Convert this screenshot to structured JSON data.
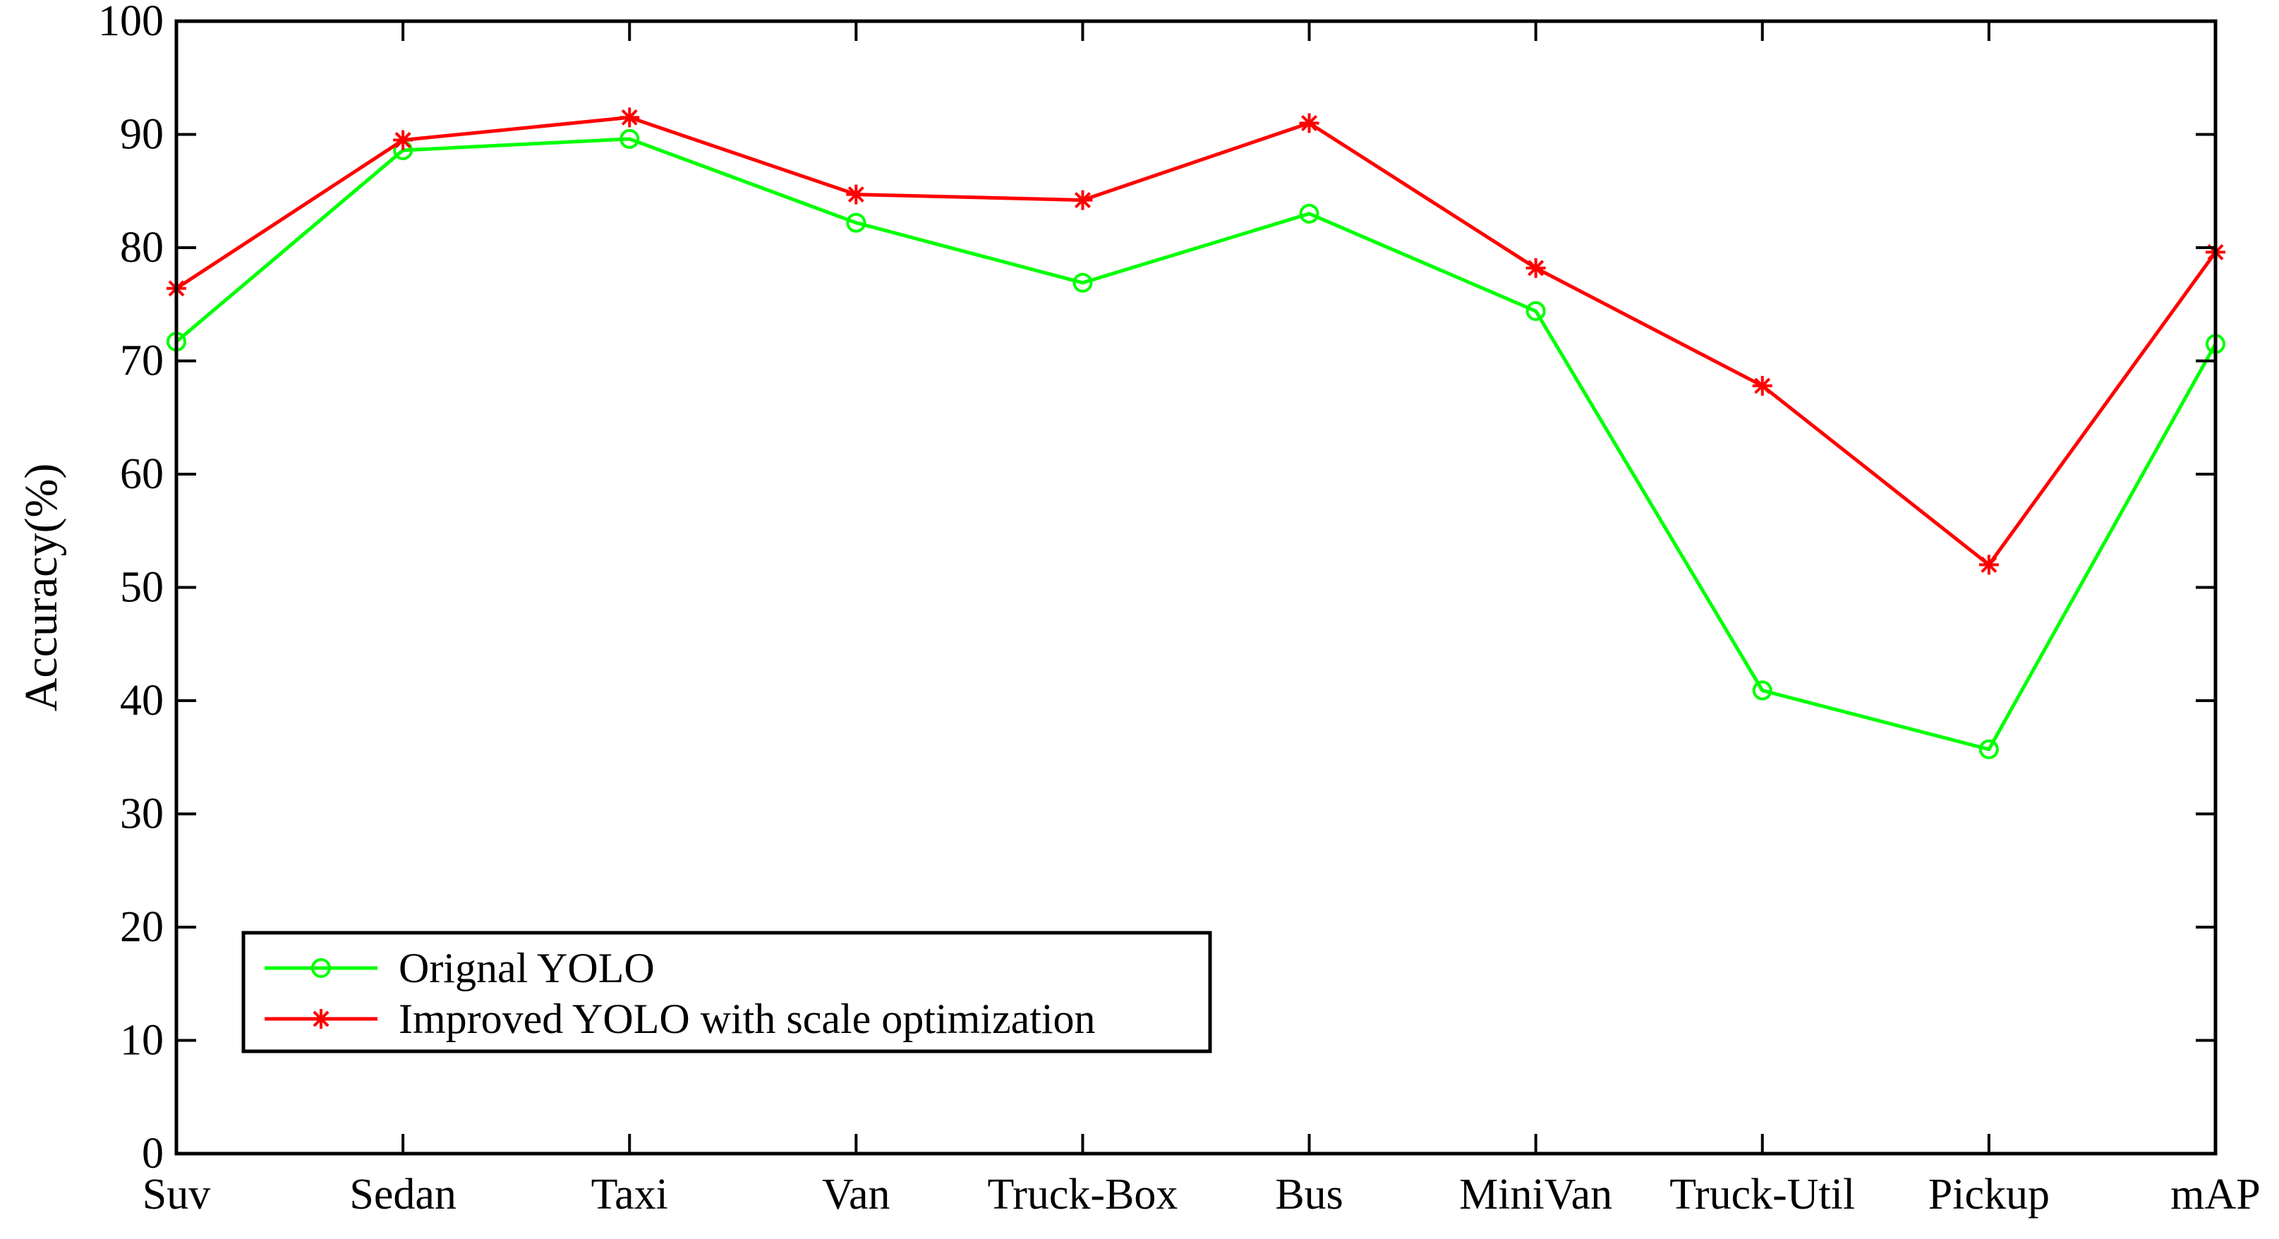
{
  "chart_data": {
    "type": "line",
    "title": "",
    "xlabel": "",
    "ylabel": "Accuracy(%)",
    "ylim": [
      0,
      100
    ],
    "yticks": [
      0,
      10,
      20,
      30,
      40,
      50,
      60,
      70,
      80,
      90,
      100
    ],
    "grid": false,
    "legend_position": "bottom-left",
    "categories": [
      "Suv",
      "Sedan",
      "Taxi",
      "Van",
      "Truck-Box",
      "Bus",
      "MiniVan",
      "Truck-Util",
      "Pickup",
      "mAP"
    ],
    "series": [
      {
        "name": "Orignal YOLO",
        "color": "#00ff00",
        "marker": "circle",
        "values": [
          71.7,
          88.6,
          89.6,
          82.2,
          76.9,
          83.0,
          74.4,
          40.9,
          35.7,
          71.5
        ]
      },
      {
        "name": "Improved YOLO with scale optimization",
        "color": "#ff0000",
        "marker": "asterisk",
        "values": [
          76.4,
          89.5,
          91.5,
          84.7,
          84.2,
          91.0,
          78.2,
          67.8,
          52.0,
          79.6
        ]
      }
    ]
  }
}
